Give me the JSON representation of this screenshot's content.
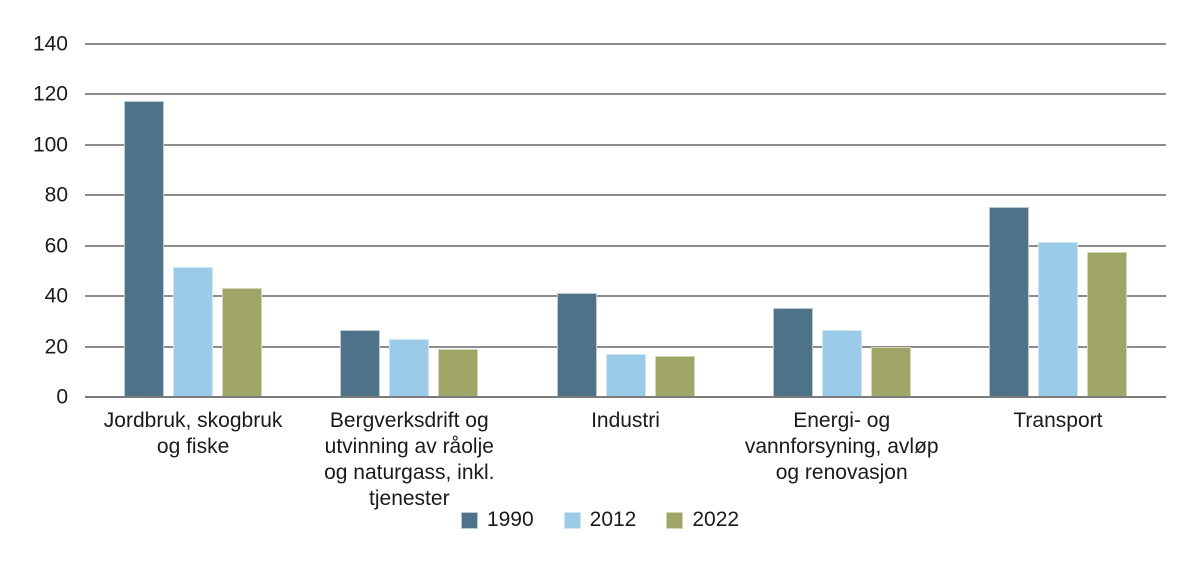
{
  "chart_data": {
    "type": "bar",
    "title": "",
    "xlabel": "",
    "ylabel": "",
    "categories": [
      "Jordbruk, skogbruk og fiske",
      "Bergverksdrift og utvinning av råolje og naturgass, inkl. tjenester",
      "Industri",
      "Energi- og vannforsyning, avløp og renovasjon",
      "Transport"
    ],
    "series": [
      {
        "name": "1990",
        "color": "#4e7389",
        "border_color": "#bacbd5",
        "values": [
          117,
          26,
          41,
          35,
          75
        ]
      },
      {
        "name": "2012",
        "color": "#9acce9",
        "border_color": "#cfe6f6",
        "values": [
          51,
          22.5,
          16.5,
          26,
          61
        ]
      },
      {
        "name": "2022",
        "color": "#9fa566",
        "border_color": "#d4d6b5",
        "values": [
          43,
          18.5,
          16,
          19.5,
          57
        ]
      }
    ],
    "ylim": [
      0,
      140
    ],
    "yticks": [
      0,
      20,
      40,
      60,
      80,
      100,
      120,
      140
    ],
    "grid": "horizontal-only",
    "gridline_color": "#8d8d8d",
    "baseline_color": "#7a7a7a",
    "text_color": "#1a1a1a",
    "legend_position": "bottom-center"
  }
}
